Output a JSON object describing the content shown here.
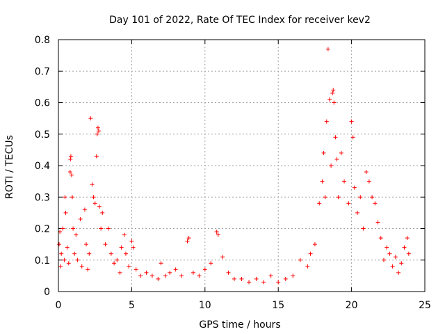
{
  "chart_data": {
    "type": "scatter",
    "title": "Day 101 of 2022, Rate Of TEC Index for receiver kev2",
    "xlabel": "GPS time / hours",
    "ylabel": "ROTI / TECUs",
    "xlim": [
      0,
      25
    ],
    "ylim": [
      0,
      0.8
    ],
    "x_ticks": [
      "0",
      "5",
      "10",
      "15",
      "20",
      "25"
    ],
    "y_ticks": [
      "0",
      "0.1",
      "0.2",
      "0.3",
      "0.4",
      "0.5",
      "0.6",
      "0.7",
      "0.8"
    ],
    "grid": true,
    "marker": "plus",
    "color": "#ff0000",
    "series": [
      {
        "points": [
          [
            0.05,
            0.15
          ],
          [
            0.1,
            0.19
          ],
          [
            0.15,
            0.08
          ],
          [
            0.2,
            0.12
          ],
          [
            0.3,
            0.2
          ],
          [
            0.4,
            0.1
          ],
          [
            0.45,
            0.3
          ],
          [
            0.5,
            0.25
          ],
          [
            0.6,
            0.14
          ],
          [
            0.7,
            0.09
          ],
          [
            0.8,
            0.38
          ],
          [
            0.82,
            0.42
          ],
          [
            0.85,
            0.43
          ],
          [
            0.9,
            0.37
          ],
          [
            0.95,
            0.3
          ],
          [
            1.0,
            0.2
          ],
          [
            1.1,
            0.12
          ],
          [
            1.2,
            0.18
          ],
          [
            1.3,
            0.1
          ],
          [
            1.5,
            0.23
          ],
          [
            1.6,
            0.08
          ],
          [
            1.8,
            0.26
          ],
          [
            1.9,
            0.15
          ],
          [
            2.0,
            0.07
          ],
          [
            2.1,
            0.12
          ],
          [
            2.2,
            0.55
          ],
          [
            2.3,
            0.34
          ],
          [
            2.4,
            0.3
          ],
          [
            2.5,
            0.28
          ],
          [
            2.6,
            0.43
          ],
          [
            2.65,
            0.5
          ],
          [
            2.7,
            0.52
          ],
          [
            2.75,
            0.51
          ],
          [
            2.8,
            0.27
          ],
          [
            2.9,
            0.2
          ],
          [
            3.0,
            0.25
          ],
          [
            3.2,
            0.15
          ],
          [
            3.4,
            0.2
          ],
          [
            3.6,
            0.12
          ],
          [
            3.8,
            0.09
          ],
          [
            4.0,
            0.1
          ],
          [
            4.2,
            0.06
          ],
          [
            4.3,
            0.14
          ],
          [
            4.5,
            0.18
          ],
          [
            4.6,
            0.12
          ],
          [
            4.8,
            0.08
          ],
          [
            5.0,
            0.16
          ],
          [
            5.1,
            0.14
          ],
          [
            5.3,
            0.07
          ],
          [
            5.6,
            0.05
          ],
          [
            6.0,
            0.06
          ],
          [
            6.4,
            0.05
          ],
          [
            6.8,
            0.04
          ],
          [
            7.0,
            0.09
          ],
          [
            7.3,
            0.05
          ],
          [
            7.6,
            0.06
          ],
          [
            8.0,
            0.07
          ],
          [
            8.4,
            0.05
          ],
          [
            8.8,
            0.16
          ],
          [
            8.9,
            0.17
          ],
          [
            9.2,
            0.06
          ],
          [
            9.6,
            0.05
          ],
          [
            10.0,
            0.07
          ],
          [
            10.4,
            0.09
          ],
          [
            10.8,
            0.19
          ],
          [
            10.9,
            0.18
          ],
          [
            11.2,
            0.11
          ],
          [
            11.6,
            0.06
          ],
          [
            12.0,
            0.04
          ],
          [
            12.5,
            0.04
          ],
          [
            13.0,
            0.03
          ],
          [
            13.5,
            0.04
          ],
          [
            14.0,
            0.03
          ],
          [
            14.5,
            0.05
          ],
          [
            15.0,
            0.03
          ],
          [
            15.5,
            0.04
          ],
          [
            16.0,
            0.05
          ],
          [
            16.5,
            0.1
          ],
          [
            17.0,
            0.08
          ],
          [
            17.2,
            0.12
          ],
          [
            17.5,
            0.15
          ],
          [
            17.8,
            0.28
          ],
          [
            18.0,
            0.35
          ],
          [
            18.1,
            0.44
          ],
          [
            18.2,
            0.3
          ],
          [
            18.3,
            0.54
          ],
          [
            18.4,
            0.77
          ],
          [
            18.5,
            0.61
          ],
          [
            18.6,
            0.4
          ],
          [
            18.7,
            0.63
          ],
          [
            18.75,
            0.64
          ],
          [
            18.8,
            0.6
          ],
          [
            18.9,
            0.49
          ],
          [
            19.0,
            0.42
          ],
          [
            19.1,
            0.3
          ],
          [
            19.3,
            0.44
          ],
          [
            19.5,
            0.35
          ],
          [
            19.8,
            0.28
          ],
          [
            20.0,
            0.54
          ],
          [
            20.1,
            0.49
          ],
          [
            20.2,
            0.33
          ],
          [
            20.4,
            0.25
          ],
          [
            20.6,
            0.3
          ],
          [
            20.8,
            0.2
          ],
          [
            21.0,
            0.38
          ],
          [
            21.2,
            0.35
          ],
          [
            21.4,
            0.3
          ],
          [
            21.6,
            0.28
          ],
          [
            21.8,
            0.22
          ],
          [
            22.0,
            0.17
          ],
          [
            22.2,
            0.1
          ],
          [
            22.4,
            0.14
          ],
          [
            22.6,
            0.12
          ],
          [
            22.8,
            0.08
          ],
          [
            23.0,
            0.11
          ],
          [
            23.2,
            0.06
          ],
          [
            23.4,
            0.09
          ],
          [
            23.6,
            0.14
          ],
          [
            23.8,
            0.17
          ],
          [
            23.9,
            0.12
          ]
        ]
      }
    ]
  }
}
